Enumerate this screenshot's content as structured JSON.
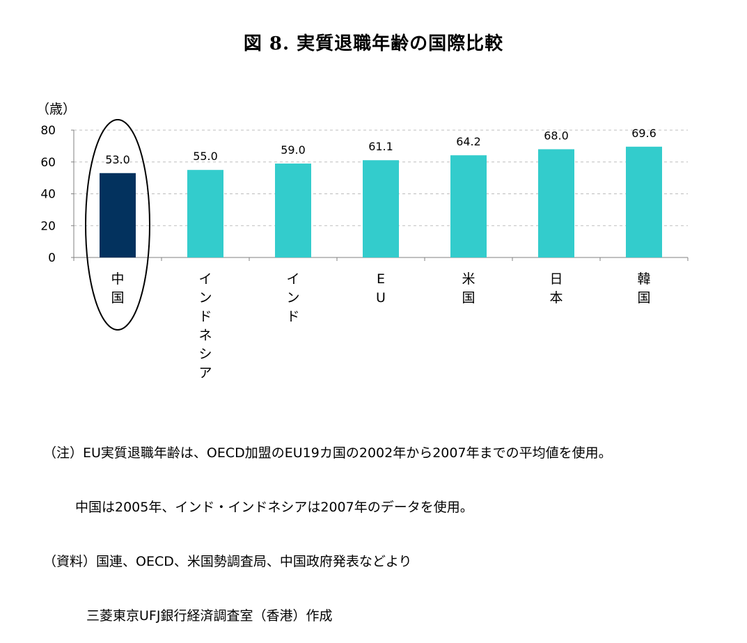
{
  "title": "図 8.  実質退職年齢の国際比較",
  "chart_data": {
    "type": "bar",
    "unit_label": "（歳）",
    "categories": [
      "中国",
      "インドネシア",
      "インド",
      "EU",
      "米国",
      "日本",
      "韓国"
    ],
    "values": [
      53.0,
      55.0,
      59.0,
      61.1,
      64.2,
      68.0,
      69.6
    ],
    "value_labels": [
      "53.0",
      "55.0",
      "59.0",
      "61.1",
      "64.2",
      "68.0",
      "69.6"
    ],
    "ylim": [
      0,
      80
    ],
    "yticks": [
      0,
      20,
      40,
      60,
      80
    ],
    "grid": true,
    "highlight_index": 0,
    "colors": {
      "highlight": "#03325e",
      "default": "#33cccc"
    }
  },
  "notes": {
    "line1": "（注）EU実質退職年齢は、OECD加盟のEU19カ国の2002年から2007年までの平均値を使用。",
    "line2": "中国は2005年、インド・インドネシアは2007年のデータを使用。",
    "line3": "（資料）国連、OECD、米国勢調査局、中国政府発表などより",
    "line4": "三菱東京UFJ銀行経済調査室（香港）作成"
  }
}
